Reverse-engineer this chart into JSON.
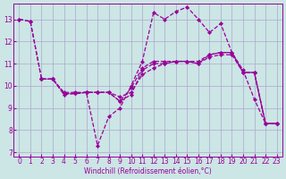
{
  "background_color": "#cce5e5",
  "grid_color": "#aaaacc",
  "line_color": "#990099",
  "xlabel": "Windchill (Refroidissement éolien,°C)",
  "xlim": [
    -0.5,
    23.5
  ],
  "ylim": [
    6.8,
    13.7
  ],
  "yticks": [
    7,
    8,
    9,
    10,
    11,
    12,
    13
  ],
  "xticks": [
    0,
    1,
    2,
    3,
    4,
    5,
    6,
    7,
    8,
    9,
    10,
    11,
    12,
    13,
    14,
    15,
    16,
    17,
    18,
    19,
    20,
    21,
    22,
    23
  ],
  "lines": [
    {
      "x": [
        0,
        1,
        2,
        3,
        4,
        5,
        6,
        7,
        8,
        9,
        10,
        11,
        12,
        13,
        14,
        15,
        16,
        17,
        18,
        19,
        20,
        21,
        22,
        23
      ],
      "y": [
        13.0,
        12.9,
        10.3,
        10.3,
        9.6,
        9.65,
        9.7,
        7.3,
        8.6,
        9.0,
        10.0,
        11.1,
        13.3,
        13.0,
        13.35,
        13.55,
        13.0,
        12.4,
        12.8,
        11.5,
        10.7,
        9.4,
        8.3,
        8.3
      ]
    },
    {
      "x": [
        2,
        3,
        4,
        5,
        6,
        7,
        8,
        9,
        10,
        11,
        12,
        13,
        14,
        15,
        16,
        17,
        18,
        19,
        20,
        21,
        22,
        23
      ],
      "y": [
        10.3,
        10.3,
        9.65,
        9.65,
        9.7,
        9.7,
        9.7,
        9.3,
        9.6,
        10.7,
        11.0,
        11.0,
        11.1,
        11.1,
        11.0,
        11.4,
        11.5,
        11.5,
        10.6,
        10.6,
        8.3,
        8.3
      ]
    },
    {
      "x": [
        2,
        3,
        4,
        5,
        6,
        7,
        8,
        9,
        10,
        11,
        12,
        13,
        14,
        15,
        16,
        17,
        18,
        19,
        20,
        21,
        22,
        23
      ],
      "y": [
        10.3,
        10.3,
        9.7,
        9.7,
        9.7,
        9.7,
        9.7,
        9.5,
        9.7,
        10.5,
        10.8,
        11.0,
        11.1,
        11.1,
        11.0,
        11.3,
        11.4,
        11.4,
        10.6,
        10.6,
        8.3,
        8.3
      ]
    },
    {
      "x": [
        0,
        1,
        2,
        3,
        4,
        5,
        6,
        7,
        8,
        9,
        10,
        11,
        12,
        13,
        14,
        15,
        16,
        17,
        18,
        19,
        20,
        21,
        22,
        23
      ],
      "y": [
        13.0,
        12.9,
        10.3,
        10.3,
        9.65,
        9.65,
        9.7,
        9.7,
        9.7,
        9.3,
        9.9,
        10.8,
        11.1,
        11.1,
        11.1,
        11.1,
        11.1,
        11.4,
        11.5,
        11.5,
        10.6,
        10.6,
        8.3,
        8.3
      ]
    }
  ]
}
